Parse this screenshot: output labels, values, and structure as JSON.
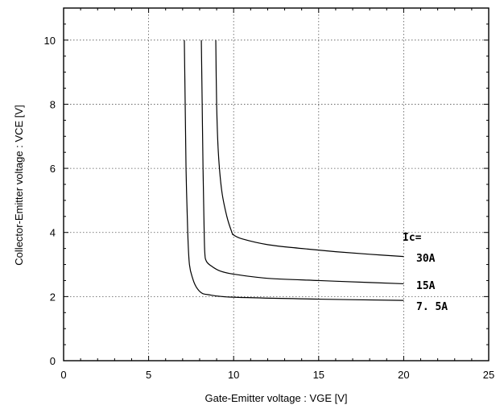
{
  "chart_data": {
    "type": "line",
    "title": "",
    "xlabel": "Gate-Emitter  voltage  : VGE [V]",
    "ylabel": "Collector-Emitter  voltage  :   VCE [V]",
    "xlim": [
      0,
      25
    ],
    "ylim": [
      0,
      11
    ],
    "x_ticks": [
      0,
      5,
      10,
      15,
      20,
      25
    ],
    "y_ticks": [
      0,
      2,
      4,
      6,
      8,
      10
    ],
    "grid": true,
    "legend_heading": "Ic=",
    "series": [
      {
        "name": "30A",
        "points": [
          [
            8.95,
            10.0
          ],
          [
            9.0,
            8.0
          ],
          [
            9.1,
            6.5
          ],
          [
            9.3,
            5.3
          ],
          [
            9.6,
            4.5
          ],
          [
            9.9,
            4.0
          ],
          [
            10.0,
            3.92
          ],
          [
            10.5,
            3.8
          ],
          [
            12,
            3.62
          ],
          [
            14,
            3.5
          ],
          [
            16,
            3.4
          ],
          [
            18,
            3.32
          ],
          [
            20,
            3.25
          ]
        ]
      },
      {
        "name": "15A",
        "points": [
          [
            8.1,
            10.0
          ],
          [
            8.15,
            8.0
          ],
          [
            8.2,
            6.0
          ],
          [
            8.25,
            4.5
          ],
          [
            8.3,
            3.4
          ],
          [
            8.4,
            3.1
          ],
          [
            8.7,
            2.95
          ],
          [
            9.2,
            2.8
          ],
          [
            10,
            2.7
          ],
          [
            12,
            2.57
          ],
          [
            15,
            2.5
          ],
          [
            18,
            2.44
          ],
          [
            20,
            2.4
          ]
        ]
      },
      {
        "name": "7. 5A",
        "points": [
          [
            7.1,
            10.0
          ],
          [
            7.15,
            8.0
          ],
          [
            7.2,
            6.0
          ],
          [
            7.3,
            4.0
          ],
          [
            7.4,
            3.0
          ],
          [
            7.6,
            2.55
          ],
          [
            7.8,
            2.3
          ],
          [
            8.1,
            2.12
          ],
          [
            8.5,
            2.06
          ],
          [
            10,
            1.98
          ],
          [
            15,
            1.92
          ],
          [
            20,
            1.88
          ]
        ]
      }
    ]
  }
}
